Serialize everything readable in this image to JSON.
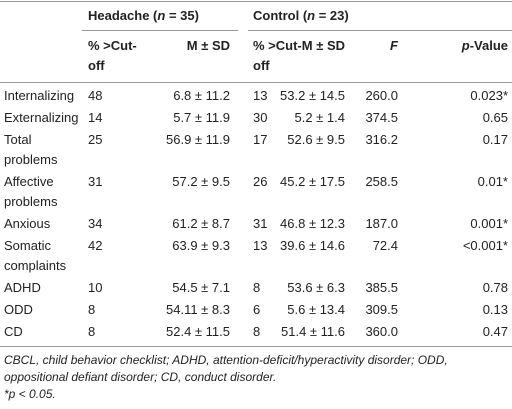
{
  "table": {
    "groups": [
      {
        "parts": [
          {
            "text": "Headache ("
          },
          {
            "text": "n",
            "italic": true
          },
          {
            "text": " = 35)"
          }
        ]
      },
      {
        "parts": [
          {
            "text": "Control ("
          },
          {
            "text": "n",
            "italic": true
          },
          {
            "text": " = 23)"
          }
        ]
      }
    ],
    "columns": [
      {
        "parts": [
          {
            "text": "% >Cut-off"
          }
        ]
      },
      {
        "parts": [
          {
            "text": "M ± SD"
          }
        ]
      },
      {
        "parts": [
          {
            "text": "% >Cut-off"
          }
        ]
      },
      {
        "parts": [
          {
            "text": "M ± SD"
          }
        ]
      },
      {
        "parts": [
          {
            "text": "F",
            "italic": true
          }
        ]
      },
      {
        "parts": [
          {
            "text": "p",
            "italic": true
          },
          {
            "text": "-Value"
          }
        ]
      }
    ],
    "rows": [
      {
        "label": "Internalizing",
        "cells": [
          "48",
          "6.8 ± 11.2",
          "13",
          "53.2 ± 14.5",
          "260.0",
          "0.023*"
        ]
      },
      {
        "label": "Externalizing",
        "cells": [
          "14",
          "5.7 ± 11.9",
          "30",
          "5.2 ± 1.4",
          "374.5",
          "0.65"
        ]
      },
      {
        "label": "Total problems",
        "cells": [
          "25",
          "56.9 ± 11.9",
          "17",
          "52.6 ± 9.5",
          "316.2",
          "0.17"
        ]
      },
      {
        "label": "Affective problems",
        "cells": [
          "31",
          "57.2 ± 9.5",
          "26",
          "45.2 ± 17.5",
          "258.5",
          "0.01*"
        ]
      },
      {
        "label": "Anxious",
        "cells": [
          "34",
          "61.2 ± 8.7",
          "31",
          "46.8 ± 12.3",
          "187.0",
          "0.001*"
        ]
      },
      {
        "label": "Somatic complaints",
        "cells": [
          "42",
          "63.9 ± 9.3",
          "13",
          "39.6 ± 14.6",
          "72.4",
          "<0.001*"
        ]
      },
      {
        "label": "ADHD",
        "cells": [
          "10",
          "54.5 ± 7.1",
          "8",
          "53.6 ± 6.3",
          "385.5",
          "0.78"
        ]
      },
      {
        "label": "ODD",
        "cells": [
          "8",
          "54.11 ± 8.3",
          "6",
          "5.6 ± 13.4",
          "309.5",
          "0.13"
        ]
      },
      {
        "label": "CD",
        "cells": [
          "8",
          "52.4 ± 11.5",
          "8",
          "51.4 ± 11.6",
          "360.0",
          "0.47"
        ]
      }
    ],
    "footnotes": [
      "CBCL, child behavior checklist; ADHD, attention-deficit/hyperactivity disorder; ODD, oppositional defiant disorder; CD, conduct disorder.",
      "*p < 0.05."
    ]
  }
}
